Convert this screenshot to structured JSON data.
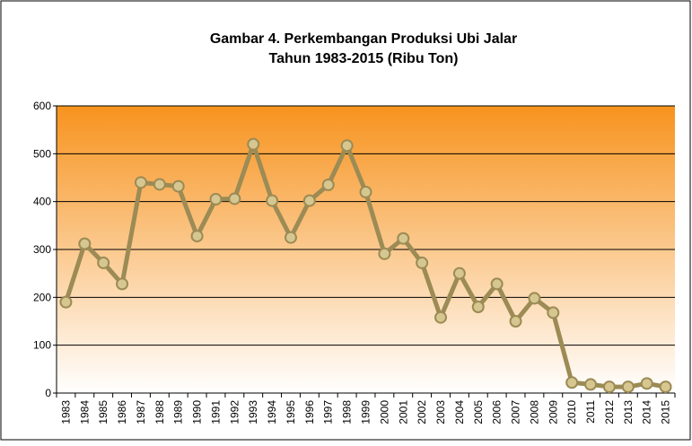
{
  "chart_data": {
    "type": "line",
    "title": "Gambar 4. Perkembangan Produksi Ubi Jalar",
    "subtitle": "Tahun 1983-2015 (Ribu Ton)",
    "categories": [
      "1983",
      "1984",
      "1985",
      "1986",
      "1987",
      "1988",
      "1989",
      "1990",
      "1991",
      "1992",
      "1993",
      "1994",
      "1995",
      "1996",
      "1997",
      "1998",
      "1999",
      "2000",
      "2001",
      "2002",
      "2003",
      "2004",
      "2005",
      "2006",
      "2007",
      "2008",
      "2009",
      "2010",
      "2011",
      "2012",
      "2013",
      "2014",
      "2015"
    ],
    "values": [
      190,
      312,
      272,
      228,
      440,
      436,
      432,
      328,
      405,
      406,
      520,
      402,
      325,
      402,
      435,
      517,
      420,
      291,
      323,
      272,
      158,
      250,
      180,
      228,
      150,
      198,
      168,
      22,
      18,
      13,
      13,
      20,
      13
    ],
    "color": "#9c8b55",
    "ylim": [
      0,
      600
    ],
    "yticks": [
      0,
      100,
      200,
      300,
      400,
      500,
      600
    ],
    "grid": true
  }
}
